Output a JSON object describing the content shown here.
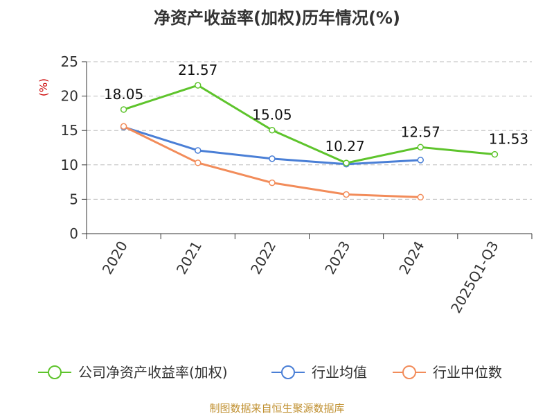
{
  "chart_data": {
    "type": "line",
    "title": "净资产收益率(加权)历年情况(%)",
    "ylabel": "(%)",
    "xlabel": "",
    "categories": [
      "2020",
      "2021",
      "2022",
      "2023",
      "2024",
      "2025Q1-Q3"
    ],
    "ylim": [
      0,
      25
    ],
    "yticks": [
      0,
      5,
      10,
      15,
      20,
      25
    ],
    "grid": true,
    "legend_position": "bottom",
    "series": [
      {
        "name": "公司净资产收益率(加权)",
        "color": "#5ec42c",
        "values": [
          18.05,
          21.57,
          15.05,
          10.27,
          12.57,
          11.53
        ],
        "labels": [
          "18.05",
          "21.57",
          "15.05",
          "10.27",
          "12.57",
          "11.53"
        ]
      },
      {
        "name": "行业均值",
        "color": "#4a7fd6",
        "values": [
          15.5,
          12.1,
          10.9,
          10.1,
          10.7,
          null
        ]
      },
      {
        "name": "行业中位数",
        "color": "#f28c5a",
        "values": [
          15.6,
          10.3,
          7.4,
          5.7,
          5.3,
          null
        ]
      }
    ]
  },
  "source": "制图数据来自恒生聚源数据库"
}
